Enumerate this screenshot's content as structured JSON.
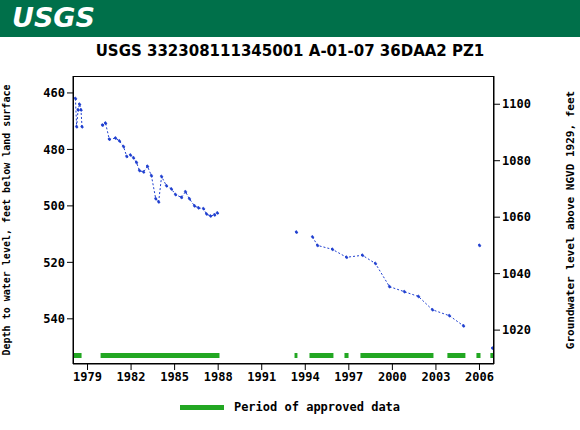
{
  "header": {
    "logo": "USGS"
  },
  "chart_data": {
    "type": "line",
    "title": "USGS 332308111345001 A-01-07 36DAA2 PZ1",
    "y_label": "Depth to water level, feet below land surface",
    "y2_label": "Groundwater level above NGVD 1929, feet",
    "xlim": [
      1978,
      2007
    ],
    "xticks": [
      1979,
      1982,
      1985,
      1988,
      1991,
      1994,
      1997,
      2000,
      2003,
      2006
    ],
    "ylim": [
      454,
      556
    ],
    "yticks": [
      460,
      480,
      500,
      520,
      540
    ],
    "y_reversed": true,
    "y2lim": [
      1008,
      1110
    ],
    "y2ticks": [
      1020,
      1040,
      1060,
      1080,
      1100
    ],
    "grid": false,
    "series": [
      {
        "color": "#1f3fd0",
        "marker": "circle",
        "line_style": "dotted",
        "x": [
          1978.17,
          1978.25,
          1978.35,
          1978.45,
          1978.55,
          1978.62,
          1979.3,
          1980.03,
          1980.24,
          1980.5,
          1980.93,
          1981.2,
          1981.48,
          1981.7,
          1981.96,
          1982.17,
          1982.37,
          1982.58,
          1982.86,
          1983.13,
          1983.4,
          1983.7,
          1983.9,
          1984.1,
          1984.44,
          1984.78,
          1985.06,
          1985.47,
          1985.75,
          1986.02,
          1986.37,
          1986.64,
          1986.99,
          1987.2,
          1987.47,
          1987.75,
          1987.95,
          1990,
          1993.39,
          1994,
          1994.5,
          1994.84,
          1995.87,
          1996.84,
          1997.94,
          1998.83,
          1999.8,
          2000.83,
          2001.8,
          2002.76,
          2003.93,
          2004.9,
          2005.5,
          2006.0,
          2006.5,
          2006.9
        ],
        "values": [
          462,
          472,
          466,
          464,
          466,
          472,
          null,
          471.4,
          470.7,
          476.4,
          476,
          477,
          479,
          482.5,
          482,
          483,
          484.6,
          487.5,
          488,
          486,
          489.3,
          497.5,
          498.6,
          489.6,
          492.9,
          494,
          496,
          497,
          495,
          497.5,
          500,
          500.7,
          501,
          502.9,
          503.6,
          503.2,
          502.5,
          null,
          509.3,
          null,
          511,
          514,
          515.4,
          518.2,
          517.5,
          520.4,
          528.6,
          530.4,
          532.1,
          536.8,
          538.9,
          542.5,
          null,
          514,
          null,
          550.4
        ]
      },
      {
        "name": "Period of approved data",
        "color": "#22a722",
        "line_style": "solid",
        "x": [
          1978.04,
          1978.59,
          1979.2,
          1979.9,
          1988.09,
          1990,
          1993.26,
          1993.46,
          1993.9,
          1994.29,
          1995.94,
          1996.3,
          1996.7,
          1996.98,
          1997.4,
          1997.8,
          2002.83,
          2003.3,
          2003.79,
          2005.03,
          2005.4,
          2005.79,
          2006.07,
          2006.4,
          2006.75,
          2006.96
        ],
        "values": [
          553,
          553,
          null,
          553,
          553,
          null,
          553,
          553,
          null,
          553,
          553,
          null,
          553,
          553,
          null,
          553,
          553,
          null,
          553,
          553,
          null,
          553,
          553,
          null,
          553,
          553
        ]
      }
    ]
  }
}
